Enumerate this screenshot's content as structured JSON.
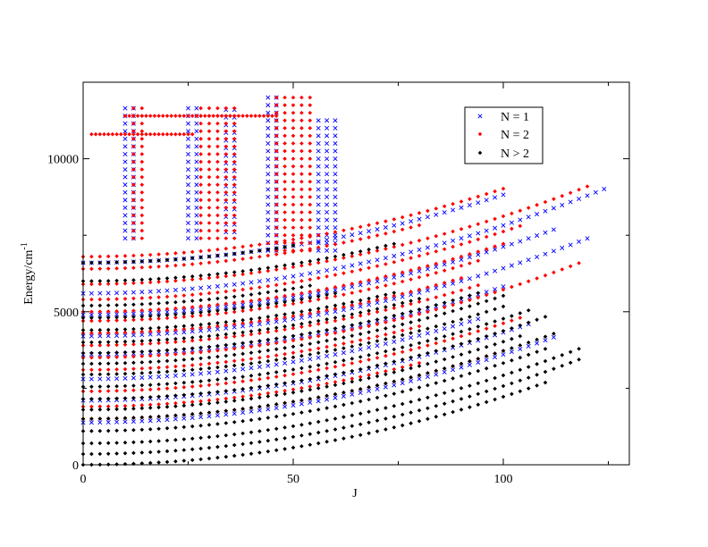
{
  "chart_data": {
    "type": "scatter",
    "title": "",
    "xlabel": "J",
    "ylabel": "Energy/cm",
    "ylabel_sup": "-1",
    "xlim": [
      0,
      130
    ],
    "ylim": [
      0,
      12500
    ],
    "grid": false,
    "legend_position": "top-right",
    "x_ticks": [
      0,
      50,
      100
    ],
    "y_ticks": [
      0,
      5000,
      10000
    ],
    "colors": {
      "n1": "#0000ff",
      "n2": "#ff0000",
      "n3": "#000000",
      "axis": "#000000"
    },
    "series": [
      {
        "name": "N = 1",
        "marker": "x",
        "bands": [
          {
            "E0": 1380,
            "jmax": 112,
            "step": 2
          },
          {
            "E0": 2100,
            "jmax": 106,
            "step": 2
          },
          {
            "E0": 2800,
            "jmax": 95,
            "step": 2
          },
          {
            "E0": 3600,
            "jmax": 100,
            "step": 2
          },
          {
            "E0": 4200,
            "jmax": 120,
            "step": 2
          },
          {
            "E0": 4900,
            "jmax": 112,
            "step": 2
          },
          {
            "E0": 5600,
            "jmax": 125,
            "step": 2
          },
          {
            "E0": 6600,
            "jmax": 100,
            "step": 2
          }
        ],
        "blocks": [
          {
            "j0": 10,
            "j1": 12,
            "Emin": 7400,
            "Emax": 11700,
            "dE": 250
          },
          {
            "j0": 25,
            "j1": 27,
            "Emin": 7400,
            "Emax": 11700,
            "dE": 250
          },
          {
            "j0": 34,
            "j1": 36,
            "Emin": 7600,
            "Emax": 11700,
            "dE": 250
          },
          {
            "j0": 44,
            "j1": 46,
            "Emin": 7000,
            "Emax": 12000,
            "dE": 250
          },
          {
            "j0": 56,
            "j1": 60,
            "Emin": 7000,
            "Emax": 11400,
            "dE": 250
          }
        ]
      },
      {
        "name": "N = 2",
        "marker": "diamond",
        "bands": [
          {
            "E0": 1500,
            "jmax": 100,
            "step": 2
          },
          {
            "E0": 1900,
            "jmax": 80,
            "step": 2
          },
          {
            "E0": 2400,
            "jmax": 105,
            "step": 2
          },
          {
            "E0": 3100,
            "jmax": 80,
            "step": 2
          },
          {
            "E0": 3500,
            "jmax": 118,
            "step": 2
          },
          {
            "E0": 3900,
            "jmax": 95,
            "step": 2
          },
          {
            "E0": 4300,
            "jmax": 90,
            "step": 2
          },
          {
            "E0": 4700,
            "jmax": 95,
            "step": 2
          },
          {
            "E0": 5000,
            "jmax": 100,
            "step": 2
          },
          {
            "E0": 5400,
            "jmax": 105,
            "step": 2
          },
          {
            "E0": 5900,
            "jmax": 120,
            "step": 2
          },
          {
            "E0": 6400,
            "jmax": 80,
            "step": 2
          },
          {
            "E0": 6800,
            "jmax": 100,
            "step": 2
          }
        ],
        "blocks": [
          {
            "j0": 12,
            "j1": 14,
            "Emin": 7400,
            "Emax": 11700,
            "dE": 250
          },
          {
            "j0": 28,
            "j1": 36,
            "Emin": 7400,
            "Emax": 11800,
            "dE": 250
          },
          {
            "j0": 46,
            "j1": 55,
            "Emin": 7000,
            "Emax": 12000,
            "dE": 250
          }
        ],
        "rows": [
          {
            "E": 10800,
            "j0": 2,
            "j1": 26,
            "step": 1
          },
          {
            "E": 11400,
            "j0": 10,
            "j1": 46,
            "step": 1
          }
        ]
      },
      {
        "name": "N > 2",
        "marker": "diamond",
        "bands": [
          {
            "E0": 0,
            "jmax": 110,
            "step": 2
          },
          {
            "E0": 350,
            "jmax": 118,
            "step": 2
          },
          {
            "E0": 700,
            "jmax": 118,
            "step": 2
          },
          {
            "E0": 1100,
            "jmax": 110,
            "step": 2
          },
          {
            "E0": 1500,
            "jmax": 112,
            "step": 2
          },
          {
            "E0": 1800,
            "jmax": 105,
            "step": 2
          },
          {
            "E0": 2150,
            "jmax": 110,
            "step": 2
          },
          {
            "E0": 2550,
            "jmax": 106,
            "step": 2
          },
          {
            "E0": 2950,
            "jmax": 100,
            "step": 2
          },
          {
            "E0": 3300,
            "jmax": 100,
            "step": 2
          },
          {
            "E0": 3650,
            "jmax": 95,
            "step": 2
          },
          {
            "E0": 4000,
            "jmax": 80,
            "step": 2
          },
          {
            "E0": 4400,
            "jmax": 75,
            "step": 2
          },
          {
            "E0": 4800,
            "jmax": 60,
            "step": 2
          },
          {
            "E0": 5200,
            "jmax": 55,
            "step": 2
          },
          {
            "E0": 6000,
            "jmax": 75,
            "step": 2
          },
          {
            "E0": 6600,
            "jmax": 50,
            "step": 2
          }
        ]
      }
    ]
  }
}
